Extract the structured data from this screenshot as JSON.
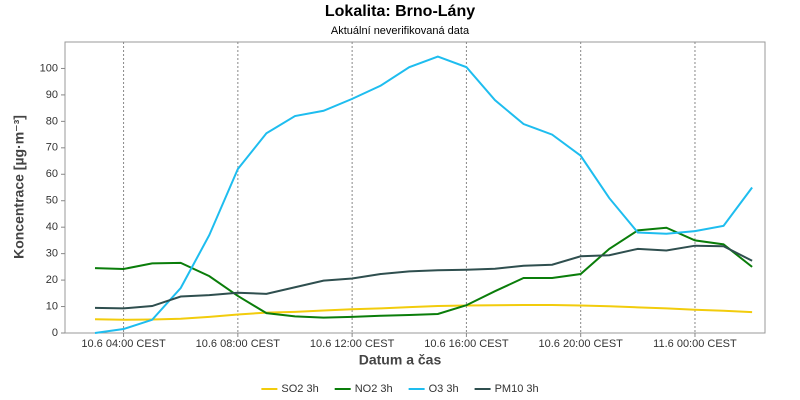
{
  "chart_data": {
    "type": "line",
    "title": "Lokalita: Brno-Lány",
    "subtitle": "Aktuální neverifikovaná data",
    "x_label": "Datum a čas",
    "y_label": "Koncentrace [µg·m⁻³]",
    "categories": [
      null,
      "10.6 04:00 CEST",
      null,
      null,
      null,
      "10.6 08:00 CEST",
      null,
      null,
      null,
      "10.6 12:00 CEST",
      null,
      null,
      null,
      "10.6 16:00 CEST",
      null,
      null,
      null,
      "10.6 20:00 CEST",
      null,
      null,
      null,
      "11.6 00:00 CEST",
      null,
      null
    ],
    "ylim": [
      0,
      110
    ],
    "yticks": [
      0,
      10,
      20,
      30,
      40,
      50,
      60,
      70,
      80,
      90,
      100
    ],
    "x_grid": true,
    "legend": "bottom",
    "series": [
      {
        "name": "SO2 3h",
        "color": "#f2cc0c",
        "values": [
          5.2,
          5,
          5.1,
          5.4,
          6.1,
          7,
          7.7,
          8,
          8.5,
          9,
          9.3,
          9.8,
          10.2,
          10.4,
          10.5,
          10.6,
          10.6,
          10.4,
          10.1,
          9.7,
          9.3,
          8.8,
          8.4,
          7.9
        ]
      },
      {
        "name": "NO2 3h",
        "color": "#0a7d0a",
        "values": [
          24.5,
          24.2,
          26.3,
          26.5,
          21.5,
          14,
          7.5,
          6.3,
          5.8,
          6.1,
          6.5,
          6.8,
          7.2,
          10.5,
          15.8,
          20.8,
          20.8,
          22.3,
          31.8,
          38.8,
          39.8,
          35,
          33.5,
          25
        ]
      },
      {
        "name": "O3 3h",
        "color": "#1ebdef",
        "values": [
          0,
          1.5,
          5,
          17,
          37,
          62,
          75.5,
          82,
          84,
          88.5,
          93.5,
          100.5,
          104.5,
          100.5,
          88,
          79,
          75,
          67,
          51,
          38,
          37.5,
          38.5,
          40.5,
          55
        ]
      },
      {
        "name": "PM10 3h",
        "color": "#2f4f4f",
        "values": [
          9.5,
          9.3,
          10.2,
          13.8,
          14.3,
          15.2,
          14.8,
          17.3,
          19.8,
          20.6,
          22.3,
          23.3,
          23.7,
          23.9,
          24.3,
          25.4,
          25.8,
          29,
          29.4,
          31.8,
          31.2,
          33,
          32.8,
          27.3
        ]
      }
    ]
  }
}
